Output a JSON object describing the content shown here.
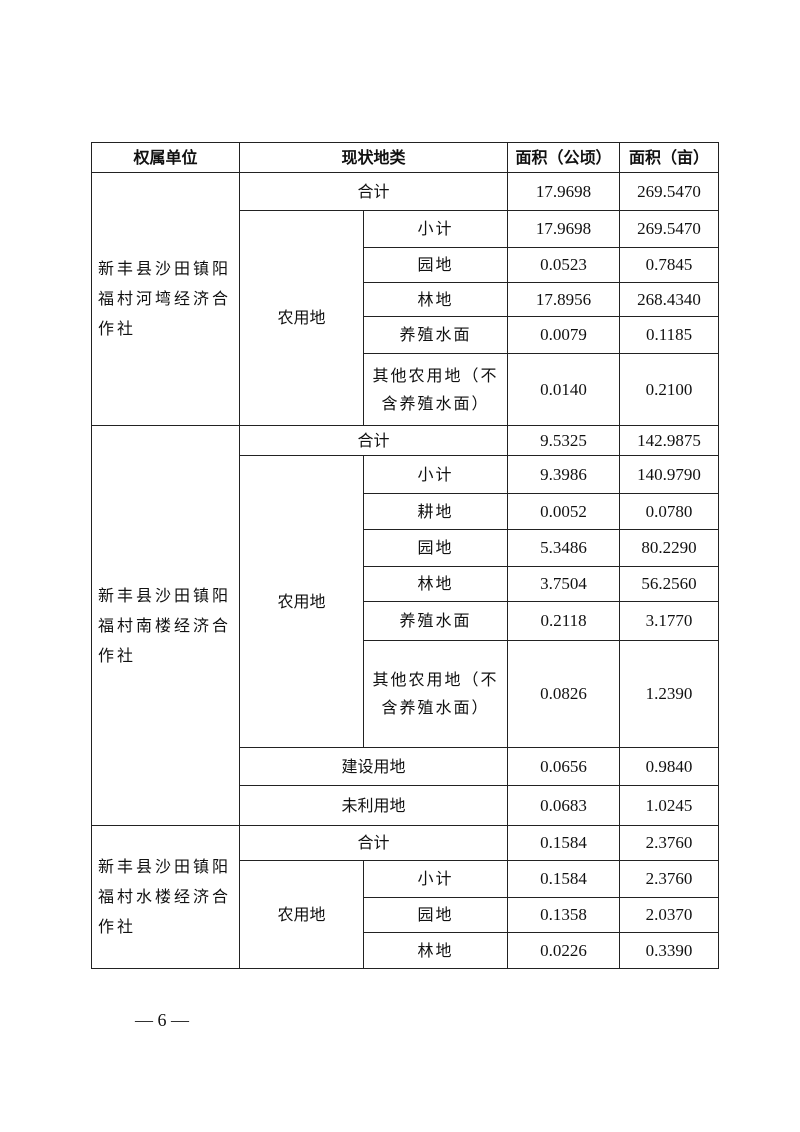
{
  "table": {
    "headers": [
      "权属单位",
      "现状地类",
      "面积（公顷）",
      "面积（亩）"
    ],
    "groups": [
      {
        "unit": "新丰县沙田镇阳福村河塆经济合作社",
        "total": {
          "label": "合计",
          "ha": "17.9698",
          "mu": "269.5470"
        },
        "agri_label": "农用地",
        "agri": [
          {
            "label": "小计",
            "ha": "17.9698",
            "mu": "269.5470"
          },
          {
            "label": "园地",
            "ha": "0.0523",
            "mu": "0.7845"
          },
          {
            "label": "林地",
            "ha": "17.8956",
            "mu": "268.4340"
          },
          {
            "label": "养殖水面",
            "ha": "0.0079",
            "mu": "0.1185"
          },
          {
            "label": "其他农用地（不含养殖水面）",
            "ha": "0.0140",
            "mu": "0.2100"
          }
        ]
      },
      {
        "unit": "新丰县沙田镇阳福村南楼经济合作社",
        "total": {
          "label": "合计",
          "ha": "9.5325",
          "mu": "142.9875"
        },
        "agri_label": "农用地",
        "agri": [
          {
            "label": "小计",
            "ha": "9.3986",
            "mu": "140.9790"
          },
          {
            "label": "耕地",
            "ha": "0.0052",
            "mu": "0.0780"
          },
          {
            "label": "园地",
            "ha": "5.3486",
            "mu": "80.2290"
          },
          {
            "label": "林地",
            "ha": "3.7504",
            "mu": "56.2560"
          },
          {
            "label": "养殖水面",
            "ha": "0.2118",
            "mu": "3.1770"
          },
          {
            "label": "其他农用地（不含养殖水面）",
            "ha": "0.0826",
            "mu": "1.2390"
          }
        ],
        "other": [
          {
            "label": "建设用地",
            "ha": "0.0656",
            "mu": "0.9840"
          },
          {
            "label": "未利用地",
            "ha": "0.0683",
            "mu": "1.0245"
          }
        ]
      },
      {
        "unit": "新丰县沙田镇阳福村水楼经济合作社",
        "total": {
          "label": "合计",
          "ha": "0.1584",
          "mu": "2.3760"
        },
        "agri_label": "农用地",
        "agri": [
          {
            "label": "小计",
            "ha": "0.1584",
            "mu": "2.3760"
          },
          {
            "label": "园地",
            "ha": "0.1358",
            "mu": "2.0370"
          },
          {
            "label": "林地",
            "ha": "0.0226",
            "mu": "0.3390"
          }
        ]
      }
    ]
  },
  "page_number": "— 6 —"
}
